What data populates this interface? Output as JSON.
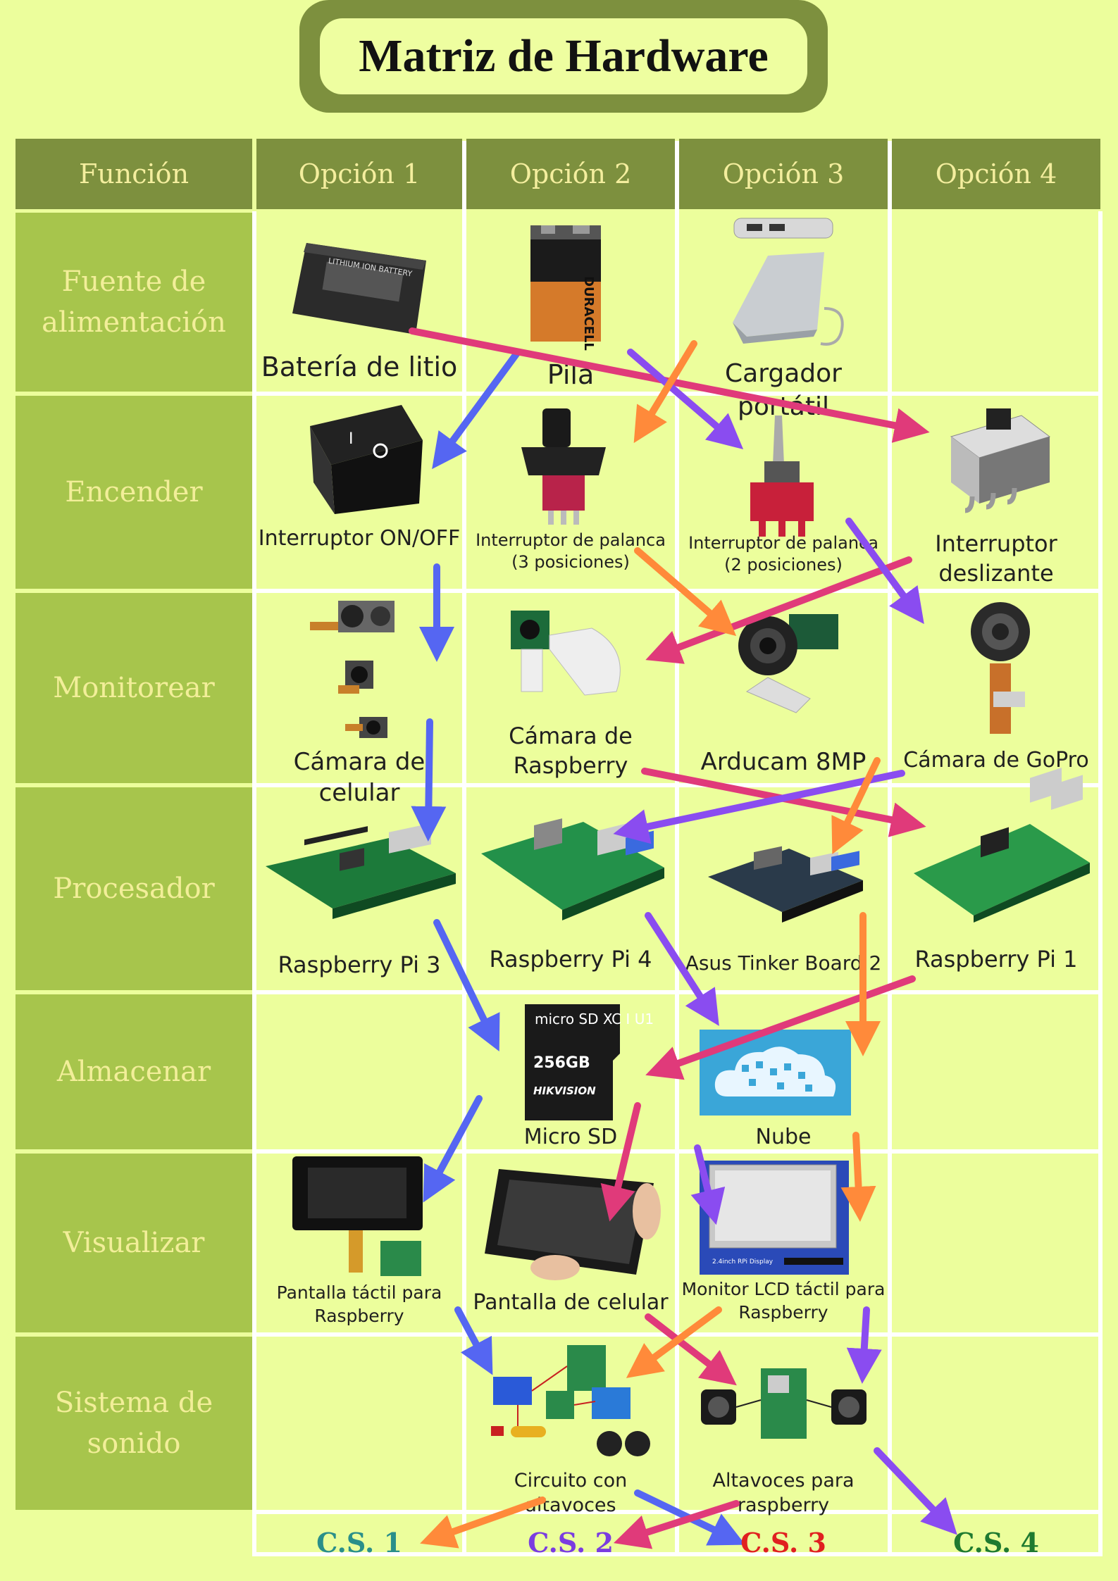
{
  "title": "Matriz de Hardware",
  "headers": [
    "Función",
    "Opción 1",
    "Opción 2",
    "Opción 3",
    "Opción 4"
  ],
  "functions": [
    "Fuente de alimentación",
    "Encender",
    "Monitorear",
    "Procesador",
    "Almacenar",
    "Visualizar",
    "Sistema de sonido"
  ],
  "options": {
    "power": [
      "Batería de litio",
      "Pila",
      "Cargador portátil"
    ],
    "switch": [
      "Interruptor ON/OFF",
      "Interruptor de palanca (3 posiciones)",
      "Interruptor de palanca (2 posiciones)",
      "Interruptor deslizante"
    ],
    "camera": [
      "Cámara de celular",
      "Cámara de Raspberry",
      "Arducam 8MP",
      "Cámara de GoPro"
    ],
    "processor": [
      "Raspberry Pi 3",
      "Raspberry Pi 4",
      "Asus Tinker Board 2",
      "Raspberry Pi 1"
    ],
    "storage": [
      "Micro SD",
      "Nube"
    ],
    "display": [
      "Pantalla táctil para Raspberry",
      "Pantalla de celular",
      "Monitor LCD táctil para Raspberry"
    ],
    "sound": [
      "Circuito con altavoces",
      "Altavoces para raspberry"
    ]
  },
  "device_text": {
    "battery": "LITHIUM ION BATTERY",
    "duracell": "DURACELL",
    "sd_brand": "micro SD XC I U1",
    "sd_capacity": "256GB",
    "sd_maker": "HIKVISION",
    "lcd": "2.4inch RPi Display"
  },
  "solutions": [
    {
      "label": "C.S. 1",
      "color": "#2a8f8a"
    },
    {
      "label": "C.S. 2",
      "color": "#7a3ce0"
    },
    {
      "label": "C.S. 3",
      "color": "#e02020"
    },
    {
      "label": "C.S. 4",
      "color": "#1f7a30"
    }
  ],
  "arrow_colors": {
    "cs1": "#5566f2",
    "cs2": "#e03a7a",
    "cs3": "#8a4cf0",
    "cs4": "#ff8a3a"
  }
}
